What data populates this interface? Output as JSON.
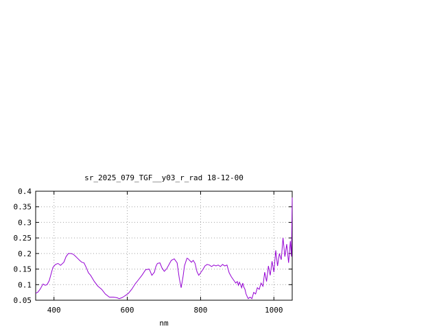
{
  "chart_data": {
    "type": "line",
    "title": "sr_2025_079_TGF__y03_r_rad 18-12-00",
    "xlabel": "nm",
    "ylabel": "",
    "xlim": [
      350,
      1050
    ],
    "ylim": [
      0.05,
      0.4
    ],
    "xticks": [
      400,
      600,
      800,
      1000
    ],
    "xtick_labels": [
      "400",
      "600",
      "800",
      "1000"
    ],
    "yticks": [
      0.05,
      0.1,
      0.15,
      0.2,
      0.25,
      0.3,
      0.35,
      0.4
    ],
    "ytick_labels": [
      "0.05",
      "0.1",
      "0.15",
      "0.2",
      "0.25",
      "0.3",
      "0.35",
      "0.4"
    ],
    "grid": true,
    "legend": "none",
    "series": [
      {
        "color": "#9400d3",
        "x": [
          350,
          356,
          362,
          370,
          376,
          381,
          387,
          391,
          397,
          404,
          411,
          418,
          427,
          433,
          439,
          446,
          452,
          458,
          464,
          470,
          476,
          482,
          488,
          494,
          500,
          510,
          520,
          530,
          540,
          551,
          562,
          572,
          578,
          585,
          591,
          597,
          603,
          612,
          622,
          630,
          640,
          650,
          660,
          667,
          674,
          678,
          682,
          689,
          695,
          701,
          707,
          714,
          720,
          728,
          736,
          742,
          747,
          752,
          756,
          760,
          763,
          766,
          770,
          775,
          780,
          785,
          790,
          795,
          800,
          806,
          812,
          818,
          824,
          830,
          836,
          842,
          848,
          854,
          860,
          866,
          872,
          878,
          884,
          890,
          896,
          900,
          903,
          906,
          909,
          912,
          915,
          918,
          921,
          924,
          927,
          930,
          935,
          940,
          945,
          950,
          955,
          960,
          965,
          970,
          975,
          980,
          985,
          990,
          995,
          1000,
          1005,
          1010,
          1015,
          1020,
          1025,
          1030,
          1035,
          1040,
          1045,
          1048,
          1050
        ],
        "y": [
          0.072,
          0.076,
          0.085,
          0.102,
          0.098,
          0.1,
          0.113,
          0.13,
          0.155,
          0.165,
          0.168,
          0.162,
          0.172,
          0.19,
          0.2,
          0.2,
          0.198,
          0.192,
          0.185,
          0.178,
          0.172,
          0.17,
          0.155,
          0.138,
          0.13,
          0.11,
          0.095,
          0.085,
          0.07,
          0.06,
          0.06,
          0.058,
          0.055,
          0.058,
          0.062,
          0.067,
          0.072,
          0.085,
          0.103,
          0.115,
          0.13,
          0.148,
          0.15,
          0.13,
          0.14,
          0.158,
          0.168,
          0.17,
          0.153,
          0.143,
          0.15,
          0.165,
          0.178,
          0.183,
          0.17,
          0.12,
          0.09,
          0.125,
          0.16,
          0.175,
          0.185,
          0.183,
          0.178,
          0.172,
          0.178,
          0.168,
          0.142,
          0.13,
          0.138,
          0.148,
          0.16,
          0.165,
          0.163,
          0.158,
          0.163,
          0.16,
          0.163,
          0.158,
          0.165,
          0.16,
          0.163,
          0.138,
          0.125,
          0.115,
          0.105,
          0.11,
          0.098,
          0.108,
          0.1,
          0.09,
          0.105,
          0.092,
          0.085,
          0.07,
          0.062,
          0.055,
          0.06,
          0.055,
          0.075,
          0.07,
          0.09,
          0.085,
          0.105,
          0.095,
          0.14,
          0.11,
          0.16,
          0.13,
          0.175,
          0.14,
          0.21,
          0.16,
          0.2,
          0.18,
          0.25,
          0.19,
          0.23,
          0.17,
          0.24,
          0.19,
          0.38
        ]
      }
    ]
  }
}
